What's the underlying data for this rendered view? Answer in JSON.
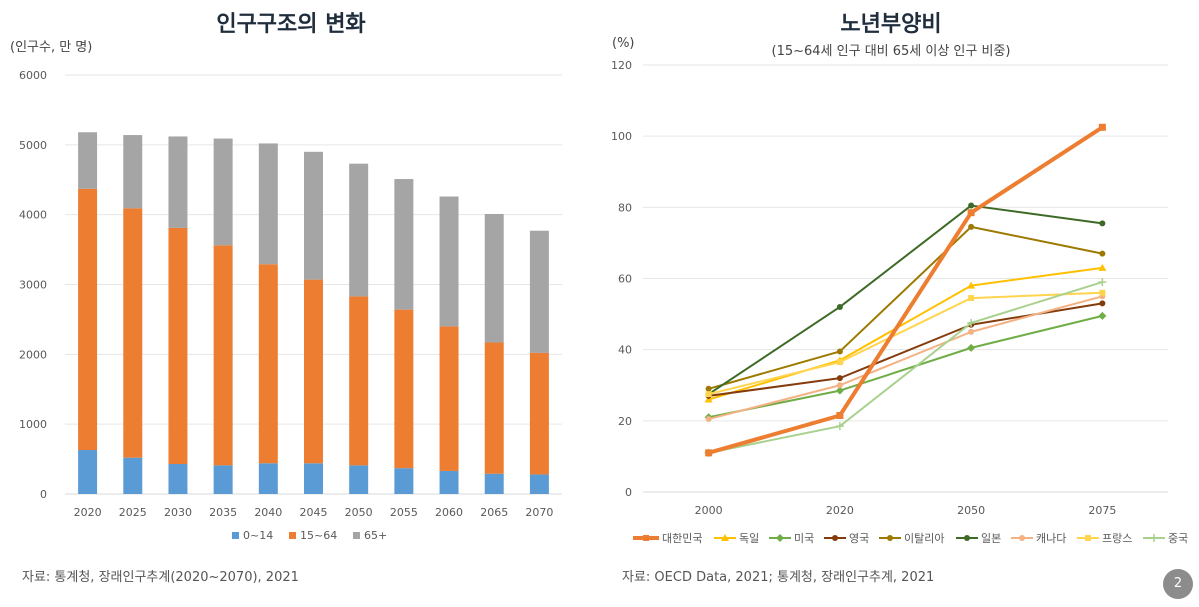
{
  "left": {
    "title": "인구구조의 변화",
    "unit": "(인구수, 만 명)",
    "source": "자료: 통계청, 장래인구추계(2020~2070), 2021"
  },
  "right": {
    "title": "노년부양비",
    "unit": "(%)",
    "subtitle": "(15~64세 인구 대비 65세 이상 인구 비중)",
    "source": "자료: OECD Data, 2021; 통계청, 장래인구추계, 2021"
  },
  "page_number": "2",
  "chart_data": [
    {
      "type": "bar",
      "stacked": true,
      "title": "인구구조의 변화",
      "ylabel": "(인구수, 만 명)",
      "ylim": [
        0,
        6000
      ],
      "yticks": [
        0,
        1000,
        2000,
        3000,
        4000,
        5000,
        6000
      ],
      "categories": [
        "2020",
        "2025",
        "2030",
        "2035",
        "2040",
        "2045",
        "2050",
        "2055",
        "2060",
        "2065",
        "2070"
      ],
      "series": [
        {
          "name": "0~14",
          "color": "#5b9bd5",
          "values": [
            630,
            520,
            430,
            410,
            440,
            440,
            410,
            370,
            330,
            290,
            280
          ]
        },
        {
          "name": "15~64",
          "color": "#ed7d31",
          "values": [
            3740,
            3570,
            3380,
            3150,
            2850,
            2630,
            2420,
            2270,
            2070,
            1880,
            1740
          ]
        },
        {
          "name": "65+",
          "color": "#a5a5a5",
          "values": [
            810,
            1050,
            1310,
            1530,
            1730,
            1830,
            1900,
            1870,
            1860,
            1840,
            1750
          ]
        }
      ],
      "legend": "bottom"
    },
    {
      "type": "line",
      "title": "노년부양비",
      "ylabel": "(%)",
      "ylim": [
        0,
        120
      ],
      "yticks": [
        0,
        20,
        40,
        60,
        80,
        100,
        120
      ],
      "x": [
        "2000",
        "2020",
        "2050",
        "2075"
      ],
      "series": [
        {
          "name": "대한민국",
          "color": "#ed7d31",
          "width": 4,
          "marker": "square",
          "values": [
            11,
            21.5,
            78.5,
            102.5
          ]
        },
        {
          "name": "독일",
          "color": "#ffc000",
          "width": 2,
          "marker": "triangle",
          "values": [
            26,
            37,
            58,
            63
          ]
        },
        {
          "name": "미국",
          "color": "#70ad47",
          "width": 2,
          "marker": "diamond",
          "values": [
            21,
            28.5,
            40.5,
            49.5
          ]
        },
        {
          "name": "영국",
          "color": "#843c0c",
          "width": 2,
          "marker": "circle",
          "values": [
            27,
            32,
            47,
            53
          ]
        },
        {
          "name": "이탈리아",
          "color": "#9c7a00",
          "width": 2,
          "marker": "circle",
          "values": [
            29,
            39.5,
            74.5,
            67
          ]
        },
        {
          "name": "일본",
          "color": "#3d6b27",
          "width": 2,
          "marker": "circle",
          "values": [
            27.5,
            52,
            80.5,
            75.5
          ]
        },
        {
          "name": "캐나다",
          "color": "#f4b183",
          "width": 2,
          "marker": "circle",
          "values": [
            20.5,
            30,
            45,
            55
          ]
        },
        {
          "name": "프랑스",
          "color": "#ffd54f",
          "width": 2,
          "marker": "square",
          "values": [
            27.5,
            36.5,
            54.5,
            56
          ]
        },
        {
          "name": "중국",
          "color": "#a9d18e",
          "width": 2,
          "marker": "plus",
          "values": [
            11,
            18.5,
            47.5,
            59
          ]
        }
      ],
      "legend": "bottom"
    }
  ]
}
